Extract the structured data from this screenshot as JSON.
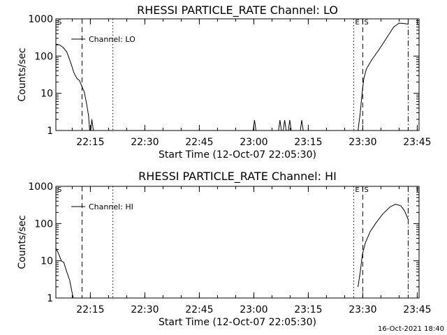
{
  "footer_timestamp": "16-Oct-2021 18:40",
  "chart_data": [
    {
      "type": "line",
      "title": "RHESSI PARTICLE_RATE Channel: LO",
      "xlabel": "Start Time (12-Oct-07 22:05:30)",
      "ylabel": "Counts/sec",
      "x_unit": "minutes since 22:05:30",
      "xlim": [
        0,
        100
      ],
      "ylim": [
        1,
        1000
      ],
      "y_scale": "log",
      "x_ticks": [
        {
          "label": "22:15",
          "value": 9.5
        },
        {
          "label": "22:30",
          "value": 24.5
        },
        {
          "label": "22:45",
          "value": 39.5
        },
        {
          "label": "23:00",
          "value": 54.5
        },
        {
          "label": "23:15",
          "value": 69.5
        },
        {
          "label": "23:30",
          "value": 84.5
        },
        {
          "label": "23:45",
          "value": 99.5
        }
      ],
      "y_ticks": [
        {
          "label": "1",
          "value": 1
        },
        {
          "label": "10",
          "value": 10
        },
        {
          "label": "100",
          "value": 100
        },
        {
          "label": "1000",
          "value": 1000
        }
      ],
      "legend": {
        "label": "Channel: LO",
        "position": "top-left"
      },
      "markers": [
        {
          "label": "S",
          "x": 0.0,
          "style": "dashdot"
        },
        {
          "label": "",
          "x": 7.2,
          "style": "dashed"
        },
        {
          "label": "",
          "x": 15.7,
          "style": "dotted"
        },
        {
          "label": "E",
          "x": 82.0,
          "style": "dotted"
        },
        {
          "label": "S",
          "x": 84.5,
          "style": "dashed"
        },
        {
          "label": "",
          "x": 97.0,
          "style": "dashdot"
        }
      ],
      "series": [
        {
          "name": "Channel: LO",
          "segments": [
            [
              [
                0,
                210
              ],
              [
                1,
                200
              ],
              [
                2,
                170
              ],
              [
                3,
                130
              ],
              [
                4,
                70
              ],
              [
                5,
                35
              ],
              [
                5.8,
                25
              ],
              [
                6.5,
                22
              ],
              [
                7.2,
                15
              ],
              [
                7.8,
                11
              ],
              [
                8.5,
                5
              ],
              [
                9,
                2.5
              ],
              [
                9.3,
                1
              ]
            ],
            [
              [
                9.6,
                1
              ],
              [
                9.9,
                2
              ],
              [
                10.3,
                1
              ]
            ],
            [
              [
                54.3,
                1
              ],
              [
                54.7,
                1.9
              ],
              [
                55.1,
                1
              ]
            ],
            [
              [
                61.3,
                1
              ],
              [
                61.7,
                1.9
              ],
              [
                62.1,
                1
              ]
            ],
            [
              [
                62.6,
                1
              ],
              [
                63.0,
                1.9
              ],
              [
                63.4,
                1
              ]
            ],
            [
              [
                64.0,
                1
              ],
              [
                64.4,
                1.9
              ],
              [
                64.8,
                1
              ]
            ],
            [
              [
                67.3,
                1
              ],
              [
                67.7,
                1.9
              ],
              [
                68.1,
                1
              ]
            ],
            [
              [
                83.2,
                1
              ],
              [
                83.8,
                3
              ],
              [
                84.3,
                10
              ],
              [
                84.8,
                25
              ],
              [
                85.5,
                45
              ],
              [
                87,
                80
              ],
              [
                89,
                150
              ],
              [
                91,
                300
              ],
              [
                93,
                600
              ],
              [
                94.5,
                770
              ],
              [
                96,
                750
              ],
              [
                97,
                720
              ]
            ]
          ]
        }
      ]
    },
    {
      "type": "line",
      "title": "RHESSI PARTICLE_RATE Channel: HI",
      "xlabel": "Start Time (12-Oct-07 22:05:30)",
      "ylabel": "Counts/sec",
      "x_unit": "minutes since 22:05:30",
      "xlim": [
        0,
        100
      ],
      "ylim": [
        1,
        1000
      ],
      "y_scale": "log",
      "x_ticks": [
        {
          "label": "22:15",
          "value": 9.5
        },
        {
          "label": "22:30",
          "value": 24.5
        },
        {
          "label": "22:45",
          "value": 39.5
        },
        {
          "label": "23:00",
          "value": 54.5
        },
        {
          "label": "23:15",
          "value": 69.5
        },
        {
          "label": "23:30",
          "value": 84.5
        },
        {
          "label": "23:45",
          "value": 99.5
        }
      ],
      "y_ticks": [
        {
          "label": "1",
          "value": 1
        },
        {
          "label": "10",
          "value": 10
        },
        {
          "label": "100",
          "value": 100
        },
        {
          "label": "1000",
          "value": 1000
        }
      ],
      "legend": {
        "label": "Channel: HI",
        "position": "top-left"
      },
      "markers": [
        {
          "label": "S",
          "x": 0.0,
          "style": "dashdot"
        },
        {
          "label": "",
          "x": 7.2,
          "style": "dashed"
        },
        {
          "label": "",
          "x": 15.7,
          "style": "dotted"
        },
        {
          "label": "E",
          "x": 82.0,
          "style": "dotted"
        },
        {
          "label": "S",
          "x": 84.5,
          "style": "dashed"
        },
        {
          "label": "",
          "x": 97.0,
          "style": "dashdot"
        }
      ],
      "series": [
        {
          "name": "Channel: HI",
          "segments": [
            [
              [
                0,
                22
              ],
              [
                0.8,
                15
              ],
              [
                1.5,
                10
              ],
              [
                2.2,
                9
              ],
              [
                3,
                5
              ],
              [
                3.8,
                3
              ],
              [
                4.4,
                1.5
              ],
              [
                4.8,
                1
              ]
            ],
            [
              [
                83.2,
                2
              ],
              [
                83.8,
                5
              ],
              [
                84.4,
                15
              ],
              [
                85.2,
                30
              ],
              [
                86.5,
                60
              ],
              [
                88,
                100
              ],
              [
                90,
                180
              ],
              [
                92,
                280
              ],
              [
                93.5,
                330
              ],
              [
                95,
                300
              ],
              [
                96,
                220
              ],
              [
                97,
                130
              ]
            ]
          ]
        }
      ]
    }
  ]
}
